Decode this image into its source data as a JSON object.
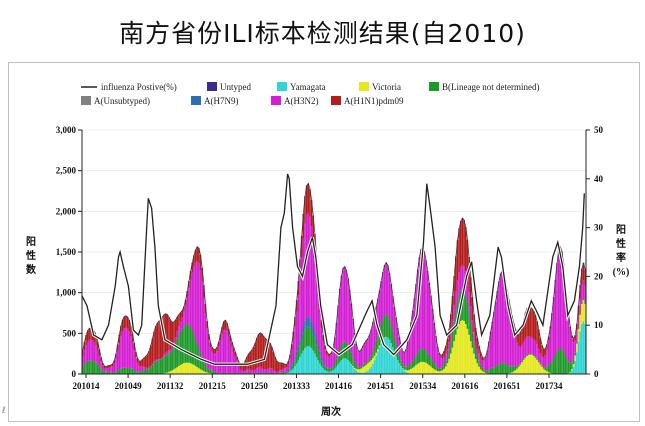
{
  "title": "南方省份ILI标本检测结果(自2010)",
  "slide_marker": "ℓ",
  "colors": {
    "influenza_positive": "#222222",
    "untyped": "#3d2a8a",
    "yamagata": "#2fd4d4",
    "victoria": "#e4e81e",
    "b_lineage_not_determined": "#1e9a2a",
    "a_unsubtyped": "#808080",
    "a_h7n9": "#2b6fb0",
    "a_h3n2": "#d31ed3",
    "a_h1n1pdm09": "#b51c1c"
  },
  "chart_data": {
    "type": "bar",
    "stacked": true,
    "xlabel": "周次",
    "ylabel": "阳性数",
    "y2label": "阳性率(%)",
    "ylim": [
      0,
      3000
    ],
    "y2lim": [
      0,
      50
    ],
    "yticks": [
      "0",
      "500",
      "1,000",
      "1,500",
      "2,000",
      "2,500",
      "3,000"
    ],
    "y2ticks": [
      "0",
      "10",
      "20",
      "30",
      "40",
      "50"
    ],
    "xticks": [
      "201014",
      "201049",
      "201132",
      "201215",
      "201250",
      "201333",
      "201416",
      "201451",
      "201534",
      "201616",
      "201651",
      "201734"
    ],
    "legend_position": "top",
    "legend": [
      {
        "name": "influenza Postive(%)",
        "kind": "line",
        "color": "#222222"
      },
      {
        "name": "Untyped",
        "kind": "box",
        "color": "#3d2a8a"
      },
      {
        "name": "Yamagata",
        "kind": "box",
        "color": "#2fd4d4"
      },
      {
        "name": "Victoria",
        "kind": "box",
        "color": "#e4e81e"
      },
      {
        "name": "B(Lineage not determined)",
        "kind": "box",
        "color": "#1e9a2a"
      },
      {
        "name": "A(Unsubtyped)",
        "kind": "box",
        "color": "#808080"
      },
      {
        "name": "A(H7N9)",
        "kind": "box",
        "color": "#2b6fb0"
      },
      {
        "name": "A(H3N2)",
        "kind": "box",
        "color": "#d31ed3"
      },
      {
        "name": "A(H1N1)pdm09",
        "kind": "box",
        "color": "#b51c1c"
      }
    ],
    "waves": [
      {
        "center": 5,
        "width": 4,
        "peak": 550,
        "mix": {
          "a_h3n2": 0.45,
          "a_h1n1pdm09": 0.25,
          "b_lineage_not_determined": 0.3
        }
      },
      {
        "center": 26,
        "width": 4,
        "peak": 700,
        "mix": {
          "a_h3n2": 0.7,
          "a_h1n1pdm09": 0.2,
          "b_lineage_not_determined": 0.1
        }
      },
      {
        "center": 48,
        "width": 6,
        "peak": 650,
        "mix": {
          "a_h1n1pdm09": 0.75,
          "b_lineage_not_determined": 0.25
        }
      },
      {
        "center": 63,
        "width": 6,
        "peak": 700,
        "mix": {
          "b_lineage_not_determined": 0.65,
          "victoria": 0.2,
          "a_h3n2": 0.15
        }
      },
      {
        "center": 70,
        "width": 4,
        "peak": 1150,
        "mix": {
          "a_h3n2": 0.85,
          "a_h1n1pdm09": 0.15
        }
      },
      {
        "center": 86,
        "width": 4,
        "peak": 600,
        "mix": {
          "a_h3n2": 0.85,
          "a_h1n1pdm09": 0.15
        }
      },
      {
        "center": 108,
        "width": 6,
        "peak": 450,
        "mix": {
          "a_h1n1pdm09": 0.9,
          "a_h3n2": 0.1
        }
      },
      {
        "center": 136,
        "width": 5,
        "peak": 2300,
        "mix": {
          "a_h3n2": 0.55,
          "a_h7n9": 0.05,
          "a_h1n1pdm09": 0.15,
          "yamagata": 0.15,
          "b_lineage_not_determined": 0.1
        }
      },
      {
        "center": 158,
        "width": 4,
        "peak": 1300,
        "mix": {
          "a_h3n2": 0.7,
          "yamagata": 0.15,
          "b_lineage_not_determined": 0.15
        }
      },
      {
        "center": 172,
        "width": 4,
        "peak": 300,
        "mix": {
          "a_h3n2": 0.7,
          "victoria": 0.3
        }
      },
      {
        "center": 183,
        "width": 5,
        "peak": 1300,
        "mix": {
          "a_h3n2": 0.45,
          "yamagata": 0.35,
          "b_lineage_not_determined": 0.2
        }
      },
      {
        "center": 205,
        "width": 5,
        "peak": 1500,
        "mix": {
          "a_h3n2": 0.8,
          "victoria": 0.1,
          "b_lineage_not_determined": 0.1
        }
      },
      {
        "center": 229,
        "width": 5,
        "peak": 1900,
        "mix": {
          "a_h1n1pdm09": 0.3,
          "victoria": 0.35,
          "b_lineage_not_determined": 0.2,
          "a_h3n2": 0.15
        }
      },
      {
        "center": 253,
        "width": 5,
        "peak": 1200,
        "mix": {
          "a_h3n2": 0.9,
          "b_lineage_not_determined": 0.1
        }
      },
      {
        "center": 270,
        "width": 5,
        "peak": 800,
        "mix": {
          "a_h1n1pdm09": 0.45,
          "victoria": 0.3,
          "a_h3n2": 0.25
        }
      },
      {
        "center": 288,
        "width": 4,
        "peak": 1500,
        "mix": {
          "a_h3n2": 0.8,
          "b_lineage_not_determined": 0.2
        }
      },
      {
        "center": 302,
        "width": 3,
        "peak": 1300,
        "mix": {
          "yamagata": 0.5,
          "victoria": 0.2,
          "a_h3n2": 0.15,
          "a_h1n1pdm09": 0.15
        }
      }
    ],
    "positive_rate_line": [
      [
        0,
        16
      ],
      [
        3,
        14
      ],
      [
        7,
        8
      ],
      [
        12,
        7
      ],
      [
        16,
        10
      ],
      [
        20,
        18
      ],
      [
        22,
        24
      ],
      [
        23,
        25
      ],
      [
        25,
        22
      ],
      [
        28,
        18
      ],
      [
        31,
        9
      ],
      [
        34,
        8
      ],
      [
        36,
        10
      ],
      [
        39,
        30
      ],
      [
        40,
        36
      ],
      [
        42,
        34
      ],
      [
        44,
        26
      ],
      [
        46,
        14
      ],
      [
        50,
        7
      ],
      [
        55,
        6
      ],
      [
        60,
        5
      ],
      [
        66,
        4
      ],
      [
        72,
        3
      ],
      [
        80,
        2
      ],
      [
        90,
        2
      ],
      [
        100,
        2
      ],
      [
        110,
        3
      ],
      [
        117,
        14
      ],
      [
        120,
        30
      ],
      [
        122,
        33
      ],
      [
        124,
        41
      ],
      [
        125,
        40
      ],
      [
        127,
        30
      ],
      [
        130,
        22
      ],
      [
        133,
        20
      ],
      [
        136,
        25
      ],
      [
        139,
        28
      ],
      [
        141,
        24
      ],
      [
        144,
        14
      ],
      [
        148,
        6
      ],
      [
        155,
        4
      ],
      [
        163,
        6
      ],
      [
        172,
        13
      ],
      [
        175,
        15
      ],
      [
        178,
        10
      ],
      [
        182,
        6
      ],
      [
        188,
        4
      ],
      [
        196,
        7
      ],
      [
        202,
        12
      ],
      [
        206,
        27
      ],
      [
        208,
        39
      ],
      [
        210,
        34
      ],
      [
        213,
        26
      ],
      [
        216,
        12
      ],
      [
        220,
        8
      ],
      [
        226,
        10
      ],
      [
        232,
        20
      ],
      [
        235,
        23
      ],
      [
        238,
        15
      ],
      [
        241,
        8
      ],
      [
        246,
        12
      ],
      [
        251,
        26
      ],
      [
        253,
        24
      ],
      [
        257,
        14
      ],
      [
        261,
        8
      ],
      [
        266,
        10
      ],
      [
        271,
        15
      ],
      [
        274,
        13
      ],
      [
        278,
        10
      ],
      [
        284,
        24
      ],
      [
        287,
        27
      ],
      [
        290,
        22
      ],
      [
        293,
        12
      ],
      [
        297,
        15
      ],
      [
        300,
        22
      ],
      [
        302,
        30
      ],
      [
        303,
        37
      ]
    ],
    "n_weeks": 304
  }
}
